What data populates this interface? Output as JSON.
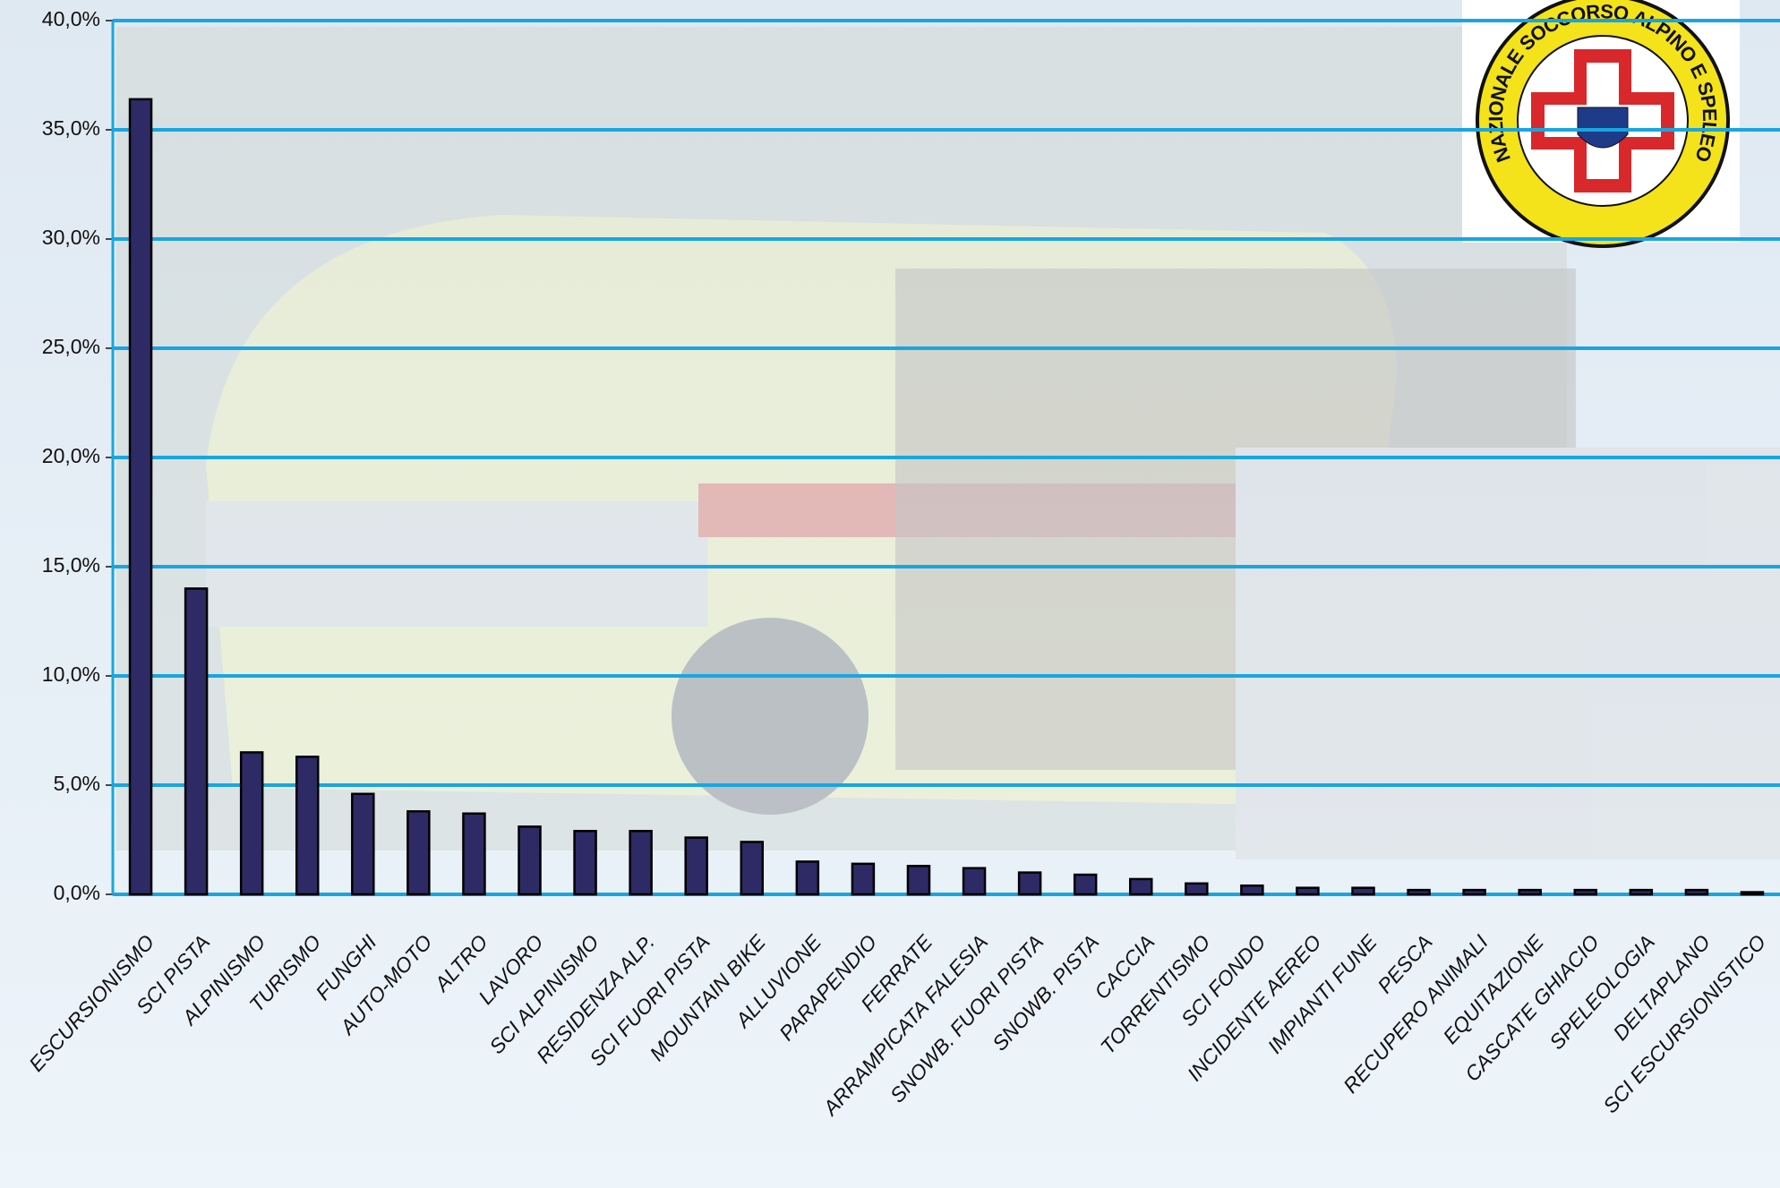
{
  "chart_data": {
    "type": "bar",
    "categories": [
      "ESCURSIONISMO",
      "SCI PISTA",
      "ALPINISMO",
      "TURISMO",
      "FUNGHI",
      "AUTO-MOTO",
      "ALTRO",
      "LAVORO",
      "SCI ALPINISMO",
      "RESIDENZA ALP.",
      "SCI FUORI PISTA",
      "MOUNTAIN BIKE",
      "ALLUVIONE",
      "PARAPENDIO",
      "FERRATE",
      "ARRAMPICATA FALESIA",
      "SNOWB. FUORI PISTA",
      "SNOWB. PISTA",
      "CACCIA",
      "TORRENTISMO",
      "SCI FONDO",
      "INCIDENTE AEREO",
      "IMPIANTI FUNE",
      "PESCA",
      "RECUPERO ANIMALI",
      "EQUITAZIONE",
      "CASCATE GHIACIO",
      "SPELEOLOGIA",
      "DELTAPLANO",
      "SCI ESCURSIONISTICO"
    ],
    "values": [
      36.4,
      14.0,
      6.5,
      6.3,
      4.6,
      3.8,
      3.7,
      3.1,
      2.9,
      2.9,
      2.6,
      2.4,
      1.5,
      1.4,
      1.3,
      1.2,
      1.0,
      0.9,
      0.7,
      0.5,
      0.4,
      0.3,
      0.3,
      0.2,
      0.2,
      0.2,
      0.2,
      0.2,
      0.2,
      0.1
    ],
    "color": "#2e2a66",
    "ylim": [
      0,
      40
    ],
    "yticks": [
      {
        "value": 0,
        "label": "0,0%"
      },
      {
        "value": 5,
        "label": "5,0%"
      },
      {
        "value": 10,
        "label": "10,0%"
      },
      {
        "value": 15,
        "label": "15,0%"
      },
      {
        "value": 20,
        "label": "20,0%"
      },
      {
        "value": 25,
        "label": "25,0%"
      },
      {
        "value": 30,
        "label": "30,0%"
      },
      {
        "value": 35,
        "label": "35,0%"
      },
      {
        "value": 40,
        "label": "40,0%"
      }
    ],
    "grid": true,
    "grid_color": "#19a6e0"
  },
  "logo": {
    "text": "CORPO NAZIONALE SOCCORSO ALPINO E SPELEOLOGICO"
  }
}
